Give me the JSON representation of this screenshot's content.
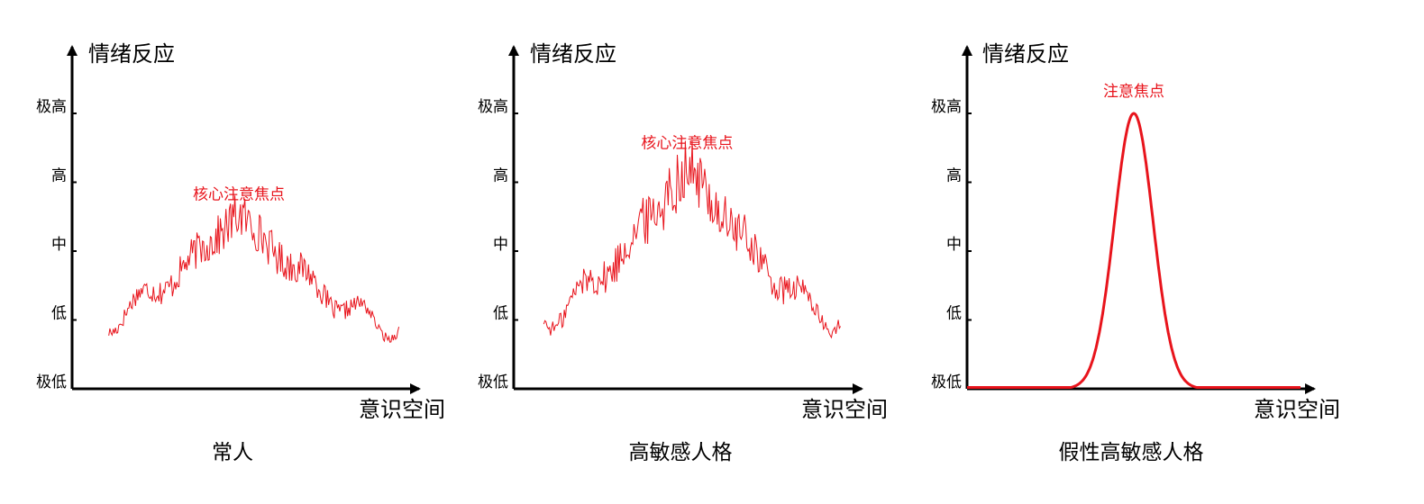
{
  "colors": {
    "axis": "#000000",
    "signal": "#e8141c"
  },
  "panels": [
    {
      "title": "常人",
      "ylabel": "情绪反应",
      "xlabel": "意识空间",
      "yticks": [
        "极低",
        "低",
        "中",
        "高",
        "极高"
      ],
      "annotation": "核心注意焦点",
      "chart_data": {
        "type": "line",
        "style": "noisy",
        "ylim": [
          0,
          4
        ],
        "xlim": [
          0,
          1
        ],
        "x_range": [
          0.11,
          0.98
        ],
        "peak_x": 0.5,
        "peak_value": 2.55,
        "base_value": 0.95,
        "noise": 0.35,
        "annotation_at": [
          0.5,
          2.75
        ]
      }
    },
    {
      "title": "高敏感人格",
      "ylabel": "情绪反应",
      "xlabel": "意识空间",
      "yticks": [
        "极低",
        "低",
        "中",
        "高",
        "极高"
      ],
      "annotation": "核心注意焦点",
      "chart_data": {
        "type": "line",
        "style": "noisy",
        "ylim": [
          0,
          4
        ],
        "xlim": [
          0,
          1
        ],
        "x_range": [
          0.09,
          0.98
        ],
        "peak_x": 0.52,
        "peak_value": 3.25,
        "base_value": 1.05,
        "noise": 0.5,
        "annotation_at": [
          0.52,
          3.5
        ]
      }
    },
    {
      "title": "假性高敏感人格",
      "ylabel": "情绪反应",
      "xlabel": "意识空间",
      "yticks": [
        "极低",
        "低",
        "中",
        "高",
        "极高"
      ],
      "annotation": "注意焦点",
      "chart_data": {
        "type": "line",
        "style": "smooth",
        "ylim": [
          0,
          4
        ],
        "xlim": [
          0,
          1
        ],
        "x_range": [
          0.0,
          1.0
        ],
        "peak_x": 0.5,
        "peak_value": 4.0,
        "base_value": 0.0,
        "width": 0.058,
        "annotation_at": [
          0.5,
          4.25
        ]
      }
    }
  ]
}
